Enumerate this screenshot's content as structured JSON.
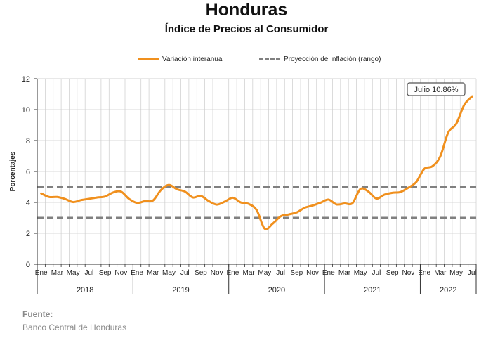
{
  "header": {
    "title": "Honduras",
    "subtitle": "Índice de Precios al Consumidor"
  },
  "colors": {
    "series": "#F0901E",
    "band": "#808080",
    "grid": "#cccccc"
  },
  "legend": {
    "series_label": "Variación interanual",
    "band_label": "Proyección de Inflación (rango)"
  },
  "annotation": {
    "text": "Julio 10.86%"
  },
  "footer": {
    "source_label": "Fuente:",
    "source_value": "Banco Central de Honduras"
  },
  "chart_data": {
    "type": "line",
    "title": "Índice de Precios al Consumidor",
    "ylabel": "Porcentajes",
    "xlabel": "",
    "ylim": [
      0,
      12
    ],
    "yticks": [
      0,
      2,
      4,
      6,
      8,
      10,
      12
    ],
    "grid": true,
    "legend_position": "top-center",
    "x_month_labels": [
      "Ene",
      "Mar",
      "May",
      "Jul",
      "Sep",
      "Nov",
      "Ene",
      "Mar",
      "May",
      "Jul",
      "Sep",
      "Nov",
      "Ene",
      "Mar",
      "May",
      "Jul",
      "Sep",
      "Nov",
      "Ene",
      "Mar",
      "May",
      "Jul",
      "Sep",
      "Nov",
      "Ene",
      "Mar",
      "May",
      "Jul"
    ],
    "x_year_labels": [
      "2018",
      "2019",
      "2020",
      "2021",
      "2022"
    ],
    "series": [
      {
        "name": "Variación interanual",
        "x": [
          "2018-01",
          "2018-02",
          "2018-03",
          "2018-04",
          "2018-05",
          "2018-06",
          "2018-07",
          "2018-08",
          "2018-09",
          "2018-10",
          "2018-11",
          "2018-12",
          "2019-01",
          "2019-02",
          "2019-03",
          "2019-04",
          "2019-05",
          "2019-06",
          "2019-07",
          "2019-08",
          "2019-09",
          "2019-10",
          "2019-11",
          "2019-12",
          "2020-01",
          "2020-02",
          "2020-03",
          "2020-04",
          "2020-05",
          "2020-06",
          "2020-07",
          "2020-08",
          "2020-09",
          "2020-10",
          "2020-11",
          "2020-12",
          "2021-01",
          "2021-02",
          "2021-03",
          "2021-04",
          "2021-05",
          "2021-06",
          "2021-07",
          "2021-08",
          "2021-09",
          "2021-10",
          "2021-11",
          "2021-12",
          "2022-01",
          "2022-02",
          "2022-03",
          "2022-04",
          "2022-05",
          "2022-06",
          "2022-07"
        ],
        "values": [
          4.58,
          4.35,
          4.35,
          4.22,
          4.02,
          4.15,
          4.23,
          4.32,
          4.38,
          4.64,
          4.7,
          4.23,
          3.97,
          4.08,
          4.12,
          4.8,
          5.13,
          4.85,
          4.7,
          4.32,
          4.42,
          4.08,
          3.86,
          4.05,
          4.3,
          4.0,
          3.9,
          3.5,
          2.3,
          2.62,
          3.1,
          3.22,
          3.35,
          3.65,
          3.8,
          3.98,
          4.18,
          3.87,
          3.93,
          3.95,
          4.87,
          4.7,
          4.25,
          4.5,
          4.62,
          4.67,
          4.95,
          5.32,
          6.17,
          6.33,
          6.97,
          8.52,
          9.08,
          10.3,
          10.86
        ]
      }
    ],
    "reference_lines": [
      {
        "name": "Proyección de Inflación (rango)",
        "values": [
          3,
          5
        ]
      }
    ]
  }
}
